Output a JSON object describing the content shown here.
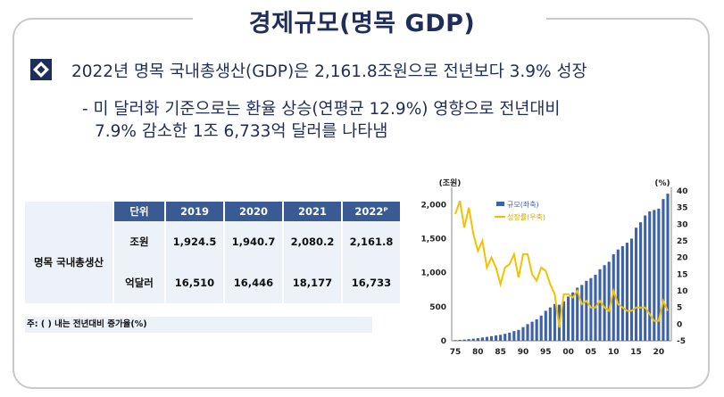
{
  "title": "경제규모(명목 GDP)",
  "headline": "2022년 명목 국내총생산(GDP)은 2,161.8조원으로 전년보다 3.9% 성장",
  "sub_line1": "- 미 달러화 기준으로는 환율 상승(연평균 12.9%) 영향으로 전년대비",
  "sub_line2": "7.9% 감소한 1조 6,733억 달러를 나타냄",
  "table": {
    "header_unit": "단위",
    "years": [
      "2019",
      "2020",
      "2021",
      "2022ᴾ"
    ],
    "row_label": "명목 국내총생산",
    "rows": [
      {
        "unit": "조원",
        "values": [
          "1,924.5",
          "1,940.7",
          "2,080.2",
          "2,161.8"
        ]
      },
      {
        "unit": "억달러",
        "values": [
          "16,510",
          "16,446",
          "18,177",
          "16,733"
        ]
      }
    ],
    "note": "주: ( ) 내는 전년대비 증가율(%)"
  },
  "colors": {
    "navy": "#1f2d5a",
    "bar": "#3d62a8",
    "line": "#f2c200",
    "table_header": "#3a5a93"
  },
  "chart_data": {
    "type": "bar",
    "left_unit": "(조원)",
    "right_unit": "(%)",
    "left_ticks": [
      "2,000",
      "1,500",
      "1,000",
      "500",
      "0"
    ],
    "right_ticks": [
      "40",
      "35",
      "30",
      "25",
      "20",
      "15",
      "10",
      "5",
      "0",
      "-5"
    ],
    "x_ticks": [
      "75",
      "80",
      "85",
      "90",
      "95",
      "00",
      "05",
      "10",
      "15",
      "20"
    ],
    "ylim_left": [
      0,
      2200
    ],
    "ylim_right": [
      -5,
      40
    ],
    "legend": [
      "규모(좌축)",
      "성장률(우축)"
    ],
    "years": [
      1975,
      1976,
      1977,
      1978,
      1979,
      1980,
      1981,
      1982,
      1983,
      1984,
      1985,
      1986,
      1987,
      1988,
      1989,
      1990,
      1991,
      1992,
      1993,
      1994,
      1995,
      1996,
      1997,
      1998,
      1999,
      2000,
      2001,
      2002,
      2003,
      2004,
      2005,
      2006,
      2007,
      2008,
      2009,
      2010,
      2011,
      2012,
      2013,
      2014,
      2015,
      2016,
      2017,
      2018,
      2019,
      2020,
      2021,
      2022
    ],
    "size": [
      10,
      14,
      18,
      24,
      31,
      39,
      49,
      57,
      68,
      79,
      88,
      102,
      120,
      142,
      160,
      200,
      245,
      280,
      315,
      370,
      440,
      490,
      540,
      530,
      580,
      650,
      710,
      780,
      820,
      880,
      920,
      970,
      1050,
      1110,
      1160,
      1270,
      1340,
      1390,
      1440,
      1500,
      1660,
      1740,
      1840,
      1900,
      1920,
      1940,
      2080,
      2160
    ],
    "growth": [
      33,
      37,
      29,
      35,
      27,
      22,
      25,
      17,
      20,
      17,
      12,
      17,
      18,
      21,
      14,
      21,
      21,
      15,
      13,
      17,
      16,
      12,
      9,
      -1,
      9,
      9,
      8,
      10,
      6,
      7,
      5,
      5,
      7,
      5,
      4,
      10,
      6,
      5,
      4,
      4,
      5,
      5,
      5,
      3,
      1,
      1,
      7,
      4
    ]
  }
}
